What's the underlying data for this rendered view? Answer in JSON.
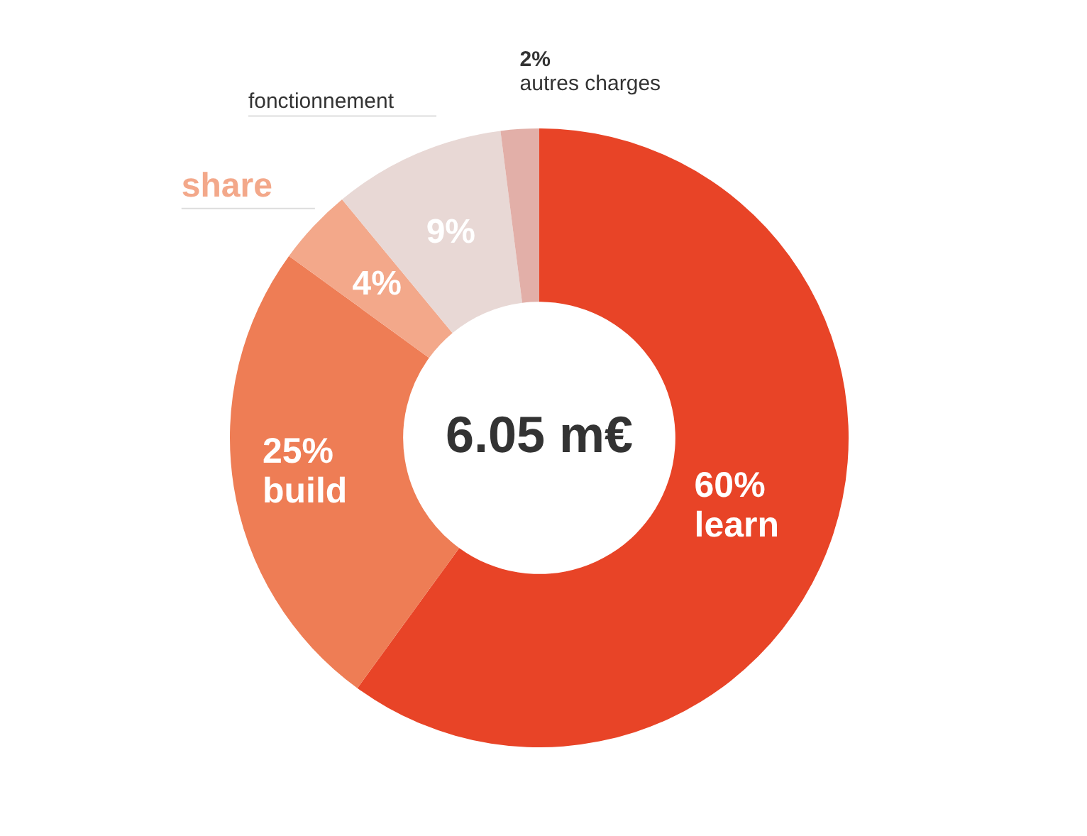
{
  "chart_data": {
    "type": "donut",
    "categories": [
      "learn",
      "build",
      "share",
      "fonctionnement",
      "autres charges"
    ],
    "values": [
      60,
      25,
      4,
      9,
      2
    ],
    "colors": [
      "#e84427",
      "#ee7d55",
      "#f3a88a",
      "#e8d8d5",
      "#e2afa8"
    ],
    "value_labels": [
      "60%",
      "25%",
      "4%",
      "9%",
      "2%"
    ],
    "annotations": [
      "6.05 m€"
    ],
    "legend": false
  }
}
